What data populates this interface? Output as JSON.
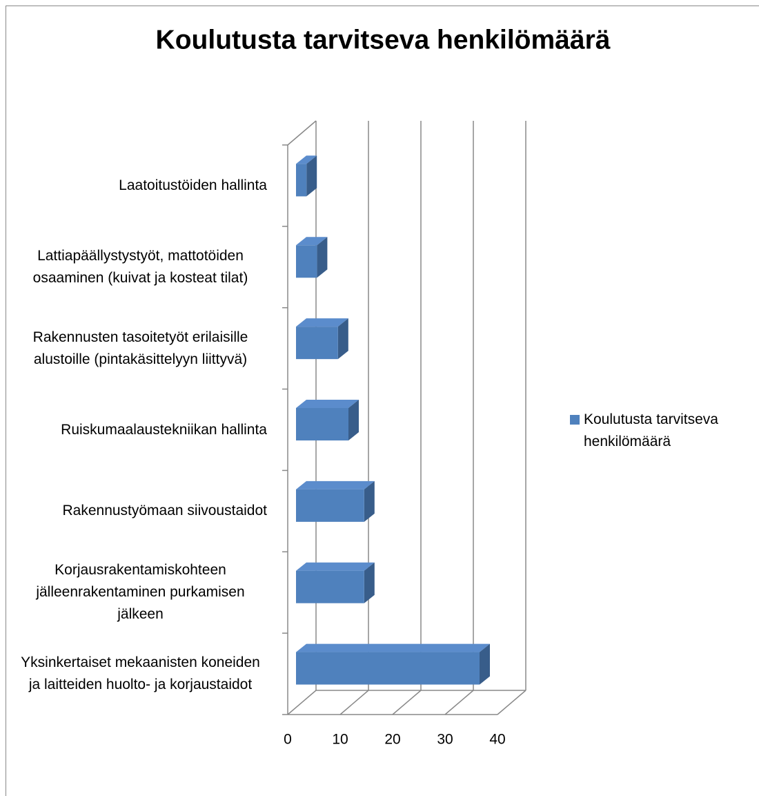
{
  "chart_data": {
    "type": "bar3d_horizontal",
    "title": "Koulutusta tarvitseva henkilömäärä",
    "categories": [
      "Laatoitustöiden hallinta",
      "Lattiapäällystystyöt, mattotöiden osaaminen (kuivat ja kosteat tilat)",
      "Rakennusten tasoitetyöt erilaisille alustoille (pintakäsittelyyn liittyvä)",
      "Ruiskumaalaustekniikan hallinta",
      "Rakennustyömaan siivoustaidot",
      "Korjausrakentamiskohteen jälleenrakentaminen purkamisen jälkeen",
      "Yksinkertaiset mekaanisten koneiden ja laitteiden huolto- ja korjaustaidot"
    ],
    "series": [
      {
        "name": "Koulutusta tarvitseva henkilömäärä",
        "color": "#4f81bd",
        "values": [
          2,
          4,
          8,
          10,
          13,
          13,
          35
        ]
      }
    ],
    "xlim": [
      0,
      40
    ],
    "xticks": [
      0,
      10,
      20,
      30,
      40
    ],
    "grid": true,
    "legend": "right"
  }
}
